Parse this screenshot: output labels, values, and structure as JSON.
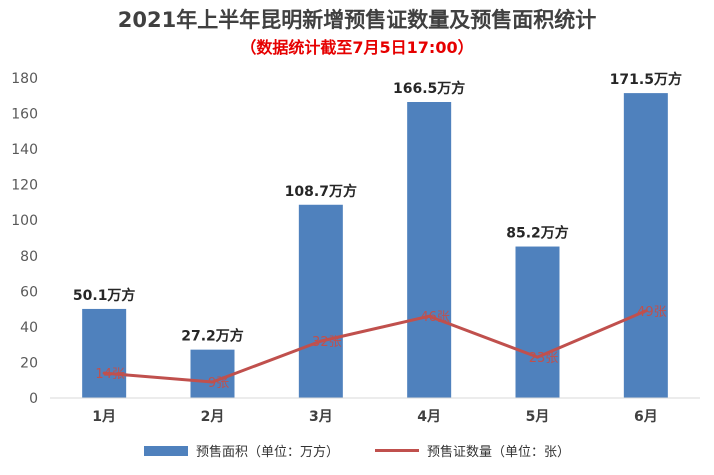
{
  "chart_data": {
    "type": "bar",
    "title": "2021年上半年昆明新增预售证数量及预售面积统计",
    "subtitle": "（数据统计截至7月5日17:00）",
    "categories": [
      "1月",
      "2月",
      "3月",
      "4月",
      "5月",
      "6月"
    ],
    "ylim": [
      0,
      180
    ],
    "yticks": [
      0,
      20,
      40,
      60,
      80,
      100,
      120,
      140,
      160,
      180
    ],
    "grid": false,
    "legend_position": "bottom",
    "series": [
      {
        "name": "预售面积（单位：万方）",
        "type": "bar",
        "color": "#4f81bd",
        "values": [
          50.1,
          27.2,
          108.7,
          166.5,
          85.2,
          171.5
        ],
        "labels": [
          "50.1万方",
          "27.2万方",
          "108.7万方",
          "166.5万方",
          "85.2万方",
          "171.5万方"
        ]
      },
      {
        "name": "预售证数量（单位：张）",
        "type": "line",
        "color": "#c0504d",
        "values": [
          14,
          9,
          32,
          46,
          23,
          49
        ],
        "labels": [
          "14张",
          "9张",
          "32张",
          "46张",
          "23张",
          "49张"
        ]
      }
    ]
  }
}
